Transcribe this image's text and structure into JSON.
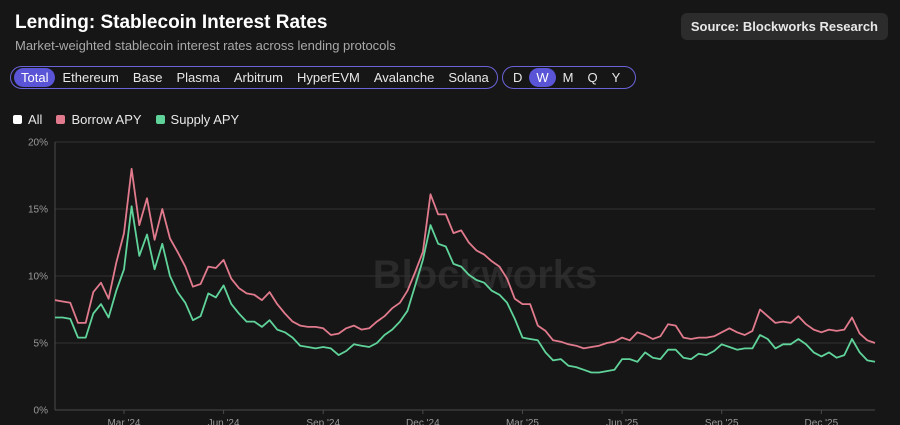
{
  "header": {
    "title": "Lending: Stablecoin Interest Rates",
    "subtitle": "Market-weighted stablecoin interest rates across lending protocols",
    "source": "Source: Blockworks Research"
  },
  "chain_tabs": [
    "Total",
    "Ethereum",
    "Base",
    "Plasma",
    "Arbitrum",
    "HyperEVM",
    "Avalanche",
    "Solana"
  ],
  "active_chain": "Total",
  "period_tabs": [
    "D",
    "W",
    "M",
    "Q",
    "Y"
  ],
  "active_period": "W",
  "legend": [
    {
      "label": "All",
      "color": "#ffffff"
    },
    {
      "label": "Borrow APY",
      "color": "#e07a8c"
    },
    {
      "label": "Supply APY",
      "color": "#5fd39a"
    }
  ],
  "chart_data": {
    "type": "line",
    "title": "Lending: Stablecoin Interest Rates",
    "watermark": "Blockworks",
    "y_ticks": [
      "0%",
      "5%",
      "10%",
      "15%",
      "20%"
    ],
    "ylim": [
      0,
      20
    ],
    "x_labels": [
      {
        "label": "Mar '24",
        "index": 9
      },
      {
        "label": "Jun '24",
        "index": 22
      },
      {
        "label": "Sep '24",
        "index": 35
      },
      {
        "label": "Dec '24",
        "index": 48
      },
      {
        "label": "Mar '25",
        "index": 61
      },
      {
        "label": "Jun '25",
        "index": 74
      },
      {
        "label": "Sep '25",
        "index": 87
      },
      {
        "label": "Dec '25",
        "index": 100
      }
    ],
    "series": [
      {
        "name": "Borrow APY",
        "color": "#e07a8c",
        "values": [
          8.2,
          8.1,
          8.0,
          6.5,
          6.5,
          8.8,
          9.5,
          8.3,
          11.0,
          13.2,
          18.0,
          13.8,
          15.8,
          12.7,
          15.0,
          12.8,
          11.8,
          10.7,
          9.2,
          9.4,
          10.7,
          10.6,
          11.2,
          9.8,
          9.1,
          8.7,
          8.6,
          8.2,
          8.8,
          7.9,
          7.2,
          6.6,
          6.3,
          6.2,
          6.2,
          6.1,
          5.6,
          5.7,
          6.1,
          6.3,
          6.0,
          6.1,
          6.6,
          7.0,
          7.6,
          8.0,
          8.9,
          10.3,
          11.8,
          16.1,
          14.6,
          14.6,
          13.2,
          13.4,
          12.5,
          11.9,
          11.6,
          11.1,
          10.7,
          9.8,
          8.3,
          7.9,
          7.9,
          6.3,
          5.9,
          5.2,
          5.1,
          4.9,
          4.8,
          4.6,
          4.7,
          4.8,
          5.0,
          5.1,
          5.4,
          5.2,
          5.8,
          5.6,
          5.3,
          5.5,
          6.4,
          6.3,
          5.4,
          5.3,
          5.4,
          5.4,
          5.5,
          5.8,
          6.1,
          5.8,
          5.6,
          5.9,
          7.5,
          7.0,
          6.5,
          6.6,
          6.5,
          7.0,
          6.4,
          6.0,
          5.8,
          6.0,
          5.9,
          6.0,
          6.9,
          5.7,
          5.2,
          5.0
        ]
      },
      {
        "name": "Supply APY",
        "color": "#5fd39a",
        "values": [
          6.9,
          6.9,
          6.8,
          5.4,
          5.4,
          7.2,
          7.9,
          6.9,
          8.9,
          10.5,
          15.2,
          11.5,
          13.1,
          10.5,
          12.4,
          10.0,
          8.8,
          8.0,
          6.7,
          7.0,
          8.7,
          8.4,
          9.3,
          7.9,
          7.2,
          6.6,
          6.6,
          6.2,
          6.7,
          6.0,
          5.8,
          5.4,
          4.8,
          4.7,
          4.6,
          4.7,
          4.6,
          4.1,
          4.4,
          4.9,
          4.8,
          4.7,
          5.0,
          5.6,
          6.0,
          6.6,
          7.4,
          9.3,
          11.2,
          13.8,
          12.4,
          12.2,
          10.9,
          10.7,
          10.1,
          9.7,
          9.5,
          8.9,
          8.6,
          8.0,
          6.8,
          5.4,
          5.3,
          5.2,
          4.3,
          3.7,
          3.8,
          3.3,
          3.2,
          3.0,
          2.8,
          2.8,
          2.9,
          3.0,
          3.8,
          3.8,
          3.6,
          4.3,
          3.9,
          3.8,
          4.5,
          4.5,
          3.9,
          3.8,
          4.2,
          4.1,
          4.4,
          4.9,
          4.7,
          4.5,
          4.6,
          4.6,
          5.6,
          5.3,
          4.6,
          4.9,
          4.9,
          5.3,
          4.9,
          4.3,
          4.0,
          4.3,
          3.9,
          4.1,
          5.3,
          4.3,
          3.7,
          3.6
        ]
      }
    ]
  }
}
